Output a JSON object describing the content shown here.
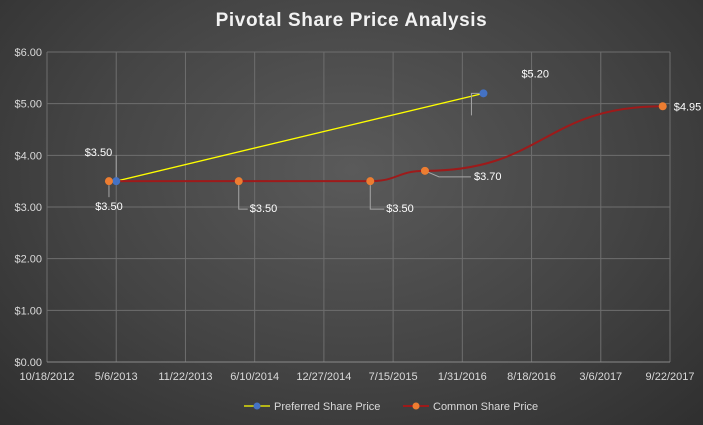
{
  "chart_data": {
    "type": "scatter",
    "title": "Pivotal Share Price Analysis",
    "xlabel": "",
    "ylabel": "",
    "x_axis_type": "date",
    "x_ticks": [
      "10/18/2012",
      "5/6/2013",
      "11/22/2013",
      "6/10/2014",
      "12/27/2014",
      "7/15/2015",
      "1/31/2016",
      "8/18/2016",
      "3/6/2017",
      "9/22/2017"
    ],
    "xlim": [
      "10/18/2012",
      "9/22/2017"
    ],
    "y_ticks": [
      "$0.00",
      "$1.00",
      "$2.00",
      "$3.00",
      "$4.00",
      "$5.00",
      "$6.00"
    ],
    "ylim": [
      0,
      6
    ],
    "grid": true,
    "legend_position": "bottom",
    "series": [
      {
        "name": "Preferred Share Price",
        "color": "#ffff00",
        "marker_color": "#4472c4",
        "points": [
          {
            "x": "5/6/2013",
            "y": 3.5,
            "label": "$3.50"
          },
          {
            "x": "4/1/2016",
            "y": 5.2,
            "label": "$5.20"
          }
        ]
      },
      {
        "name": "Common Share Price",
        "color": "#9e1a1a",
        "marker_color": "#ed7d31",
        "points": [
          {
            "x": "4/15/2013",
            "y": 3.5,
            "label": "$3.50"
          },
          {
            "x": "4/25/2014",
            "y": 3.5,
            "label": "$3.50"
          },
          {
            "x": "5/10/2015",
            "y": 3.5,
            "label": "$3.50"
          },
          {
            "x": "10/15/2015",
            "y": 3.7,
            "label": "$3.70"
          },
          {
            "x": "9/1/2017",
            "y": 4.95,
            "label": "$4.95"
          }
        ]
      }
    ]
  }
}
